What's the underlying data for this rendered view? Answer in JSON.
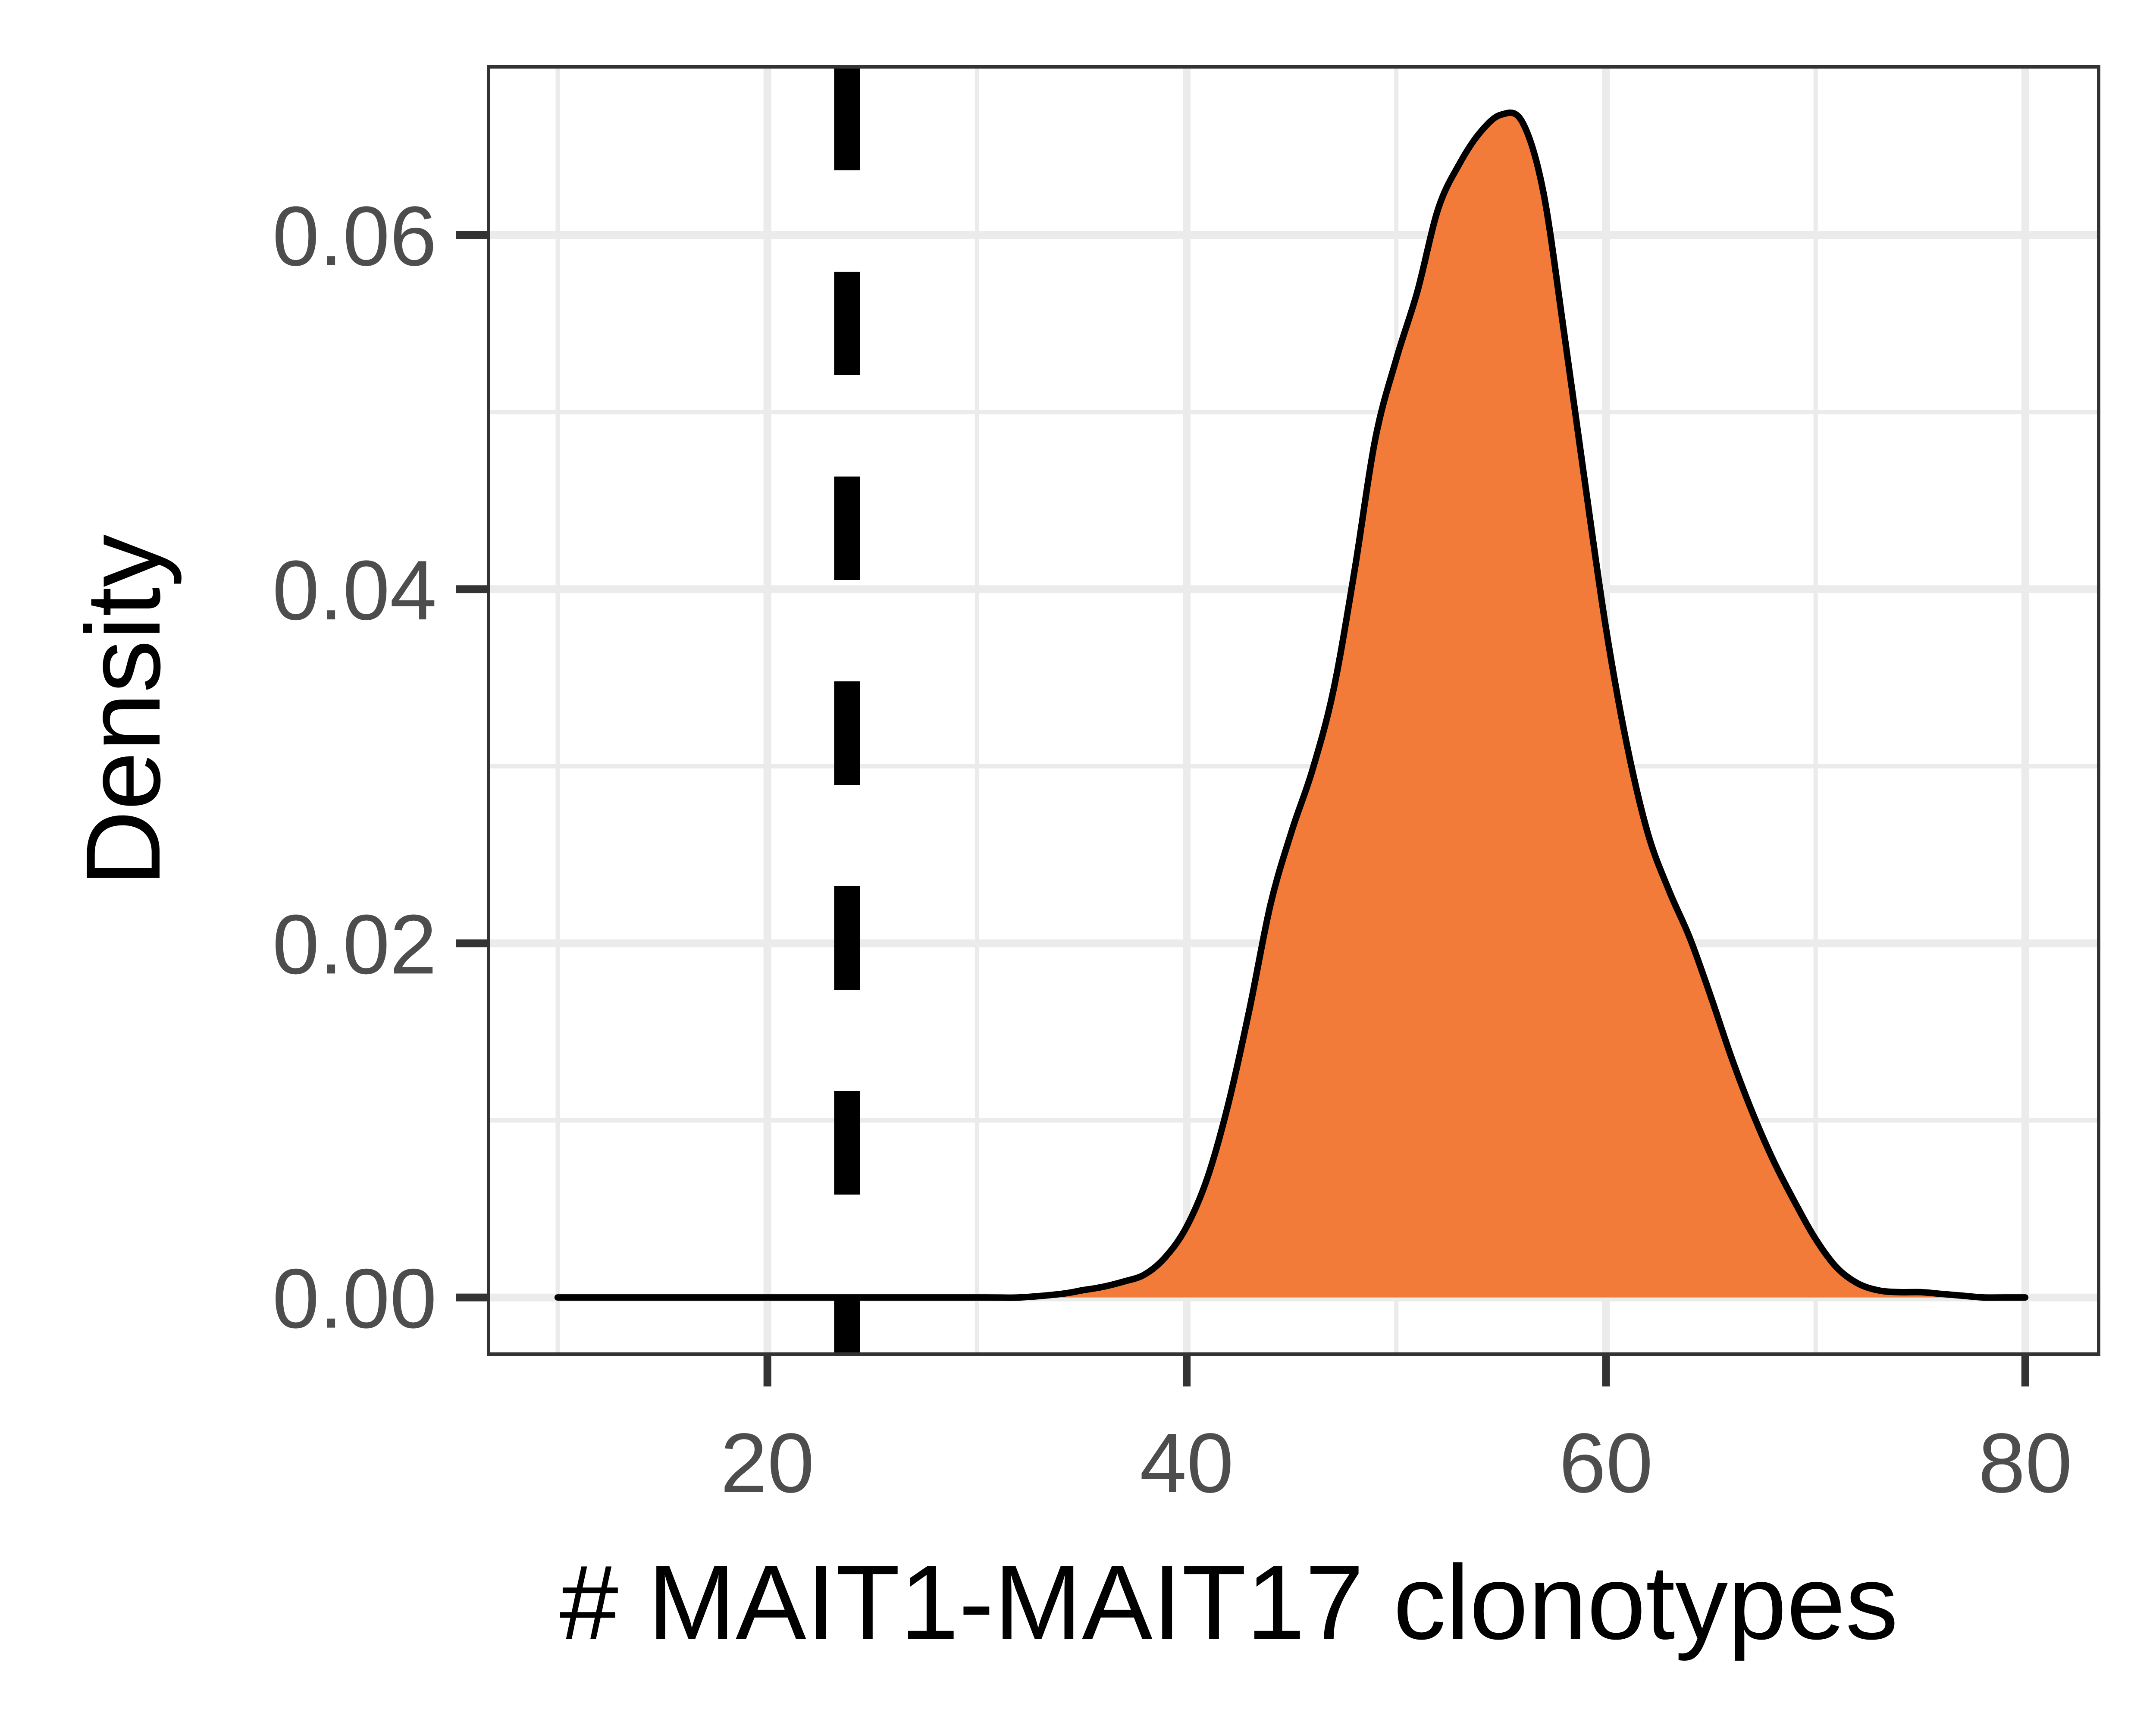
{
  "chart_data": {
    "type": "area",
    "title": "",
    "xlabel": "# MAIT1-MAIT17 clonotypes",
    "ylabel": "Density",
    "xlim": [
      6.7,
      83.5
    ],
    "ylim": [
      -0.0032,
      0.0695
    ],
    "x_ticks": [
      20,
      40,
      60,
      80
    ],
    "x_tick_labels": [
      "20",
      "40",
      "60",
      "80"
    ],
    "y_ticks": [
      0.0,
      0.02,
      0.04,
      0.06
    ],
    "y_tick_labels": [
      "0.00",
      "0.02",
      "0.04",
      "0.06"
    ],
    "x_minor_gridlines": [
      10,
      30,
      50,
      70
    ],
    "y_minor_gridlines": [
      0.01,
      0.03,
      0.05
    ],
    "grid": true,
    "legend": "none",
    "reference_line": {
      "x": 23.8,
      "style": "dashed",
      "color": "#000000"
    },
    "fill_color": "#F37B39",
    "line_color": "#000000",
    "fill_from_x": 35,
    "series": [
      {
        "x": [
          10,
          20,
          30,
          32,
          34,
          35,
          36,
          37,
          38,
          39,
          40,
          41,
          42,
          43,
          44,
          45,
          46,
          47,
          48,
          49,
          50,
          51,
          52,
          53,
          54,
          55,
          56,
          57,
          58,
          59,
          60,
          61,
          62,
          63,
          64,
          65,
          66,
          67,
          68,
          69,
          70,
          71,
          72,
          73,
          74,
          75,
          76,
          77,
          78,
          79,
          80
        ],
        "y": [
          0,
          0,
          0,
          0.0,
          0.0002,
          0.0004,
          0.0006,
          0.0009,
          0.0013,
          0.0023,
          0.004,
          0.0068,
          0.011,
          0.0163,
          0.0222,
          0.0263,
          0.0298,
          0.0343,
          0.041,
          0.0485,
          0.053,
          0.0568,
          0.0615,
          0.064,
          0.0658,
          0.0668,
          0.0664,
          0.0625,
          0.0545,
          0.046,
          0.0378,
          0.0312,
          0.0262,
          0.023,
          0.0203,
          0.017,
          0.0135,
          0.0104,
          0.0077,
          0.0054,
          0.0033,
          0.0017,
          0.0008,
          0.0004,
          0.0003,
          0.0003,
          0.0002,
          0.0001,
          0.0,
          0.0,
          0
        ]
      }
    ]
  }
}
